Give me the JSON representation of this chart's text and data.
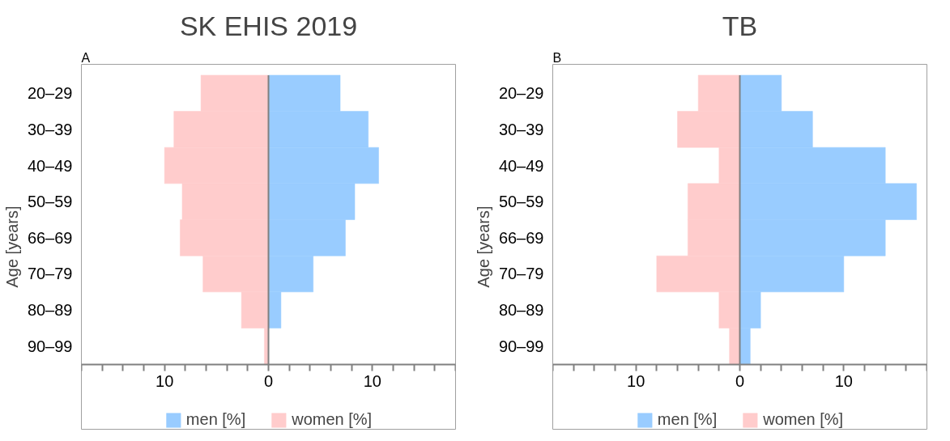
{
  "chart_data": [
    {
      "type": "bar",
      "orientation": "horizontal",
      "stacked": true,
      "title": "SK EHIS 2019",
      "ylabel": "Age [years]",
      "annotations": [
        "A"
      ],
      "categories": [
        "20–29",
        "30–39",
        "40–49",
        "50–59",
        "66–69",
        "70–79",
        "80–89",
        "90–99"
      ],
      "series": [
        {
          "name": "men [%]",
          "color": "#99ccff",
          "values": [
            6.9,
            9.6,
            10.6,
            8.3,
            7.4,
            4.3,
            1.2,
            0
          ]
        },
        {
          "name": "women [%]",
          "color": "#ffcccc",
          "values": [
            -6.5,
            -9.1,
            -10.0,
            -8.3,
            -8.5,
            -6.3,
            -2.6,
            -0.4
          ]
        }
      ],
      "xlim": [
        -18,
        18
      ],
      "xticks": [
        {
          "value": -18,
          "label": null
        },
        {
          "value": -16,
          "label": null
        },
        {
          "value": -14,
          "label": null
        },
        {
          "value": -12,
          "label": null
        },
        {
          "value": -10,
          "label": "10"
        },
        {
          "value": -8,
          "label": null
        },
        {
          "value": -6,
          "label": null
        },
        {
          "value": -4,
          "label": null
        },
        {
          "value": -2,
          "label": null
        },
        0,
        {
          "value": 2,
          "label": null
        },
        {
          "value": 4,
          "label": null
        },
        {
          "value": 6,
          "label": null
        },
        {
          "value": 8,
          "label": null
        },
        10,
        {
          "value": 12,
          "label": null
        },
        {
          "value": 14,
          "label": null
        },
        {
          "value": 16,
          "label": null
        },
        {
          "value": 18,
          "label": null
        }
      ],
      "ref_lines": [
        {
          "axis": "x",
          "value": 0,
          "color": "#808080"
        }
      ],
      "grid": false,
      "legend": "bottom"
    },
    {
      "type": "bar",
      "orientation": "horizontal",
      "stacked": true,
      "title": "TB",
      "ylabel": "Age [years]",
      "annotations": [
        "B"
      ],
      "categories": [
        "20–29",
        "30–39",
        "40–49",
        "50–59",
        "66–69",
        "70–79",
        "80–89",
        "90–99"
      ],
      "series": [
        {
          "name": "men [%]",
          "color": "#99ccff",
          "values": [
            4,
            7,
            14,
            17,
            14,
            10,
            2,
            1
          ]
        },
        {
          "name": "women [%]",
          "color": "#ffcccc",
          "values": [
            -4,
            -6,
            -2,
            -5,
            -5,
            -8,
            -2,
            -1
          ]
        }
      ],
      "xlim": [
        -18,
        18
      ],
      "xticks": [
        {
          "value": -18,
          "label": null
        },
        {
          "value": -16,
          "label": null
        },
        {
          "value": -14,
          "label": null
        },
        {
          "value": -12,
          "label": null
        },
        {
          "value": -10,
          "label": "10"
        },
        {
          "value": -8,
          "label": null
        },
        {
          "value": -6,
          "label": null
        },
        {
          "value": -4,
          "label": null
        },
        {
          "value": -2,
          "label": null
        },
        0,
        {
          "value": 2,
          "label": null
        },
        {
          "value": 4,
          "label": null
        },
        {
          "value": 6,
          "label": null
        },
        {
          "value": 8,
          "label": null
        },
        10,
        {
          "value": 12,
          "label": null
        },
        {
          "value": 14,
          "label": null
        },
        {
          "value": 16,
          "label": null
        },
        {
          "value": 18,
          "label": null
        }
      ],
      "ref_lines": [
        {
          "axis": "x",
          "value": 0,
          "color": "#808080"
        }
      ],
      "grid": false,
      "legend": "bottom"
    }
  ]
}
